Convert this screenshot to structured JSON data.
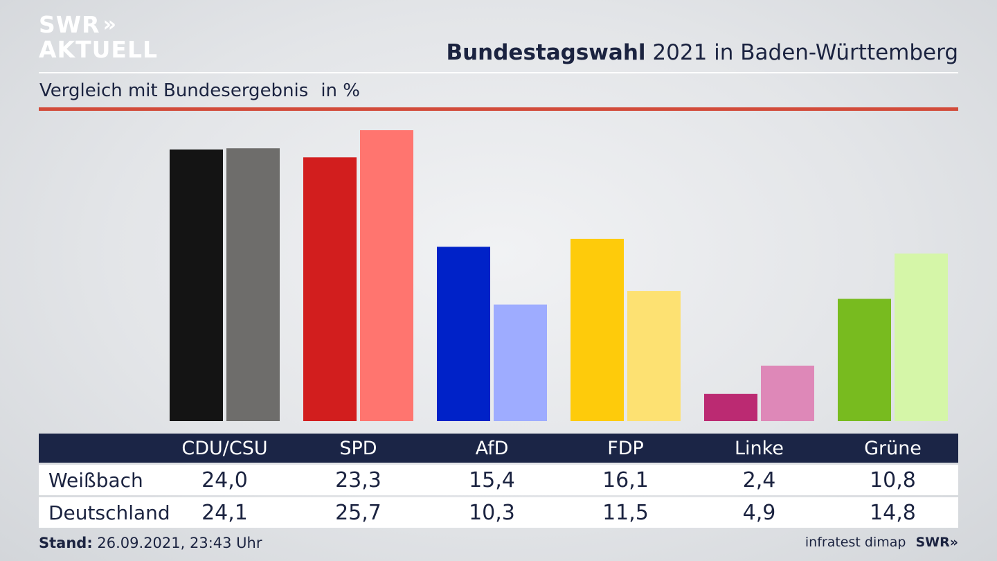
{
  "logo": {
    "line1": "SWR",
    "line2": "AKTUELL",
    "chevrons": "»"
  },
  "header": {
    "title_bold": "Bundestagswahl",
    "title_rest": " 2021 in Baden-Württemberg",
    "subtitle": "Vergleich mit Bundesergebnis",
    "unit": "in %"
  },
  "colors": {
    "CDU/CSU": [
      "#141414",
      "#6e6d6b"
    ],
    "SPD": [
      "#d21e1e",
      "#ff756f"
    ],
    "AfD": [
      "#0022c8",
      "#9eacff"
    ],
    "FDP": [
      "#fecb0b",
      "#fde172"
    ],
    "Linke": [
      "#bb2a72",
      "#de88b8"
    ],
    "Grüne": [
      "#78bb1f",
      "#d5f6a8"
    ],
    "accent_red": "#d24b3a",
    "table_header": "#1b2546"
  },
  "chart_data": {
    "type": "bar",
    "categories": [
      "CDU/CSU",
      "SPD",
      "AfD",
      "FDP",
      "Linke",
      "Grüne"
    ],
    "series": [
      {
        "name": "Weißbach",
        "values": [
          24.0,
          23.3,
          15.4,
          16.1,
          2.4,
          10.8
        ]
      },
      {
        "name": "Deutschland",
        "values": [
          24.1,
          25.7,
          10.3,
          11.5,
          4.9,
          14.8
        ]
      }
    ],
    "value_labels": {
      "Weißbach": [
        "24,0",
        "23,3",
        "15,4",
        "16,1",
        "2,4",
        "10,8"
      ],
      "Deutschland": [
        "24,1",
        "25,7",
        "10,3",
        "11,5",
        "4,9",
        "14,8"
      ]
    },
    "title": "Bundestagswahl 2021 in Baden-Württemberg",
    "subtitle": "Vergleich mit Bundesergebnis",
    "ylabel": "in %",
    "ylim": [
      0,
      25.7
    ],
    "grid": false
  },
  "footer": {
    "stand_label": "Stand:",
    "stand_value": " 26.09.2021, 23:43 Uhr",
    "source": "infratest dimap",
    "brand": "SWR",
    "brand_chev": "»"
  }
}
